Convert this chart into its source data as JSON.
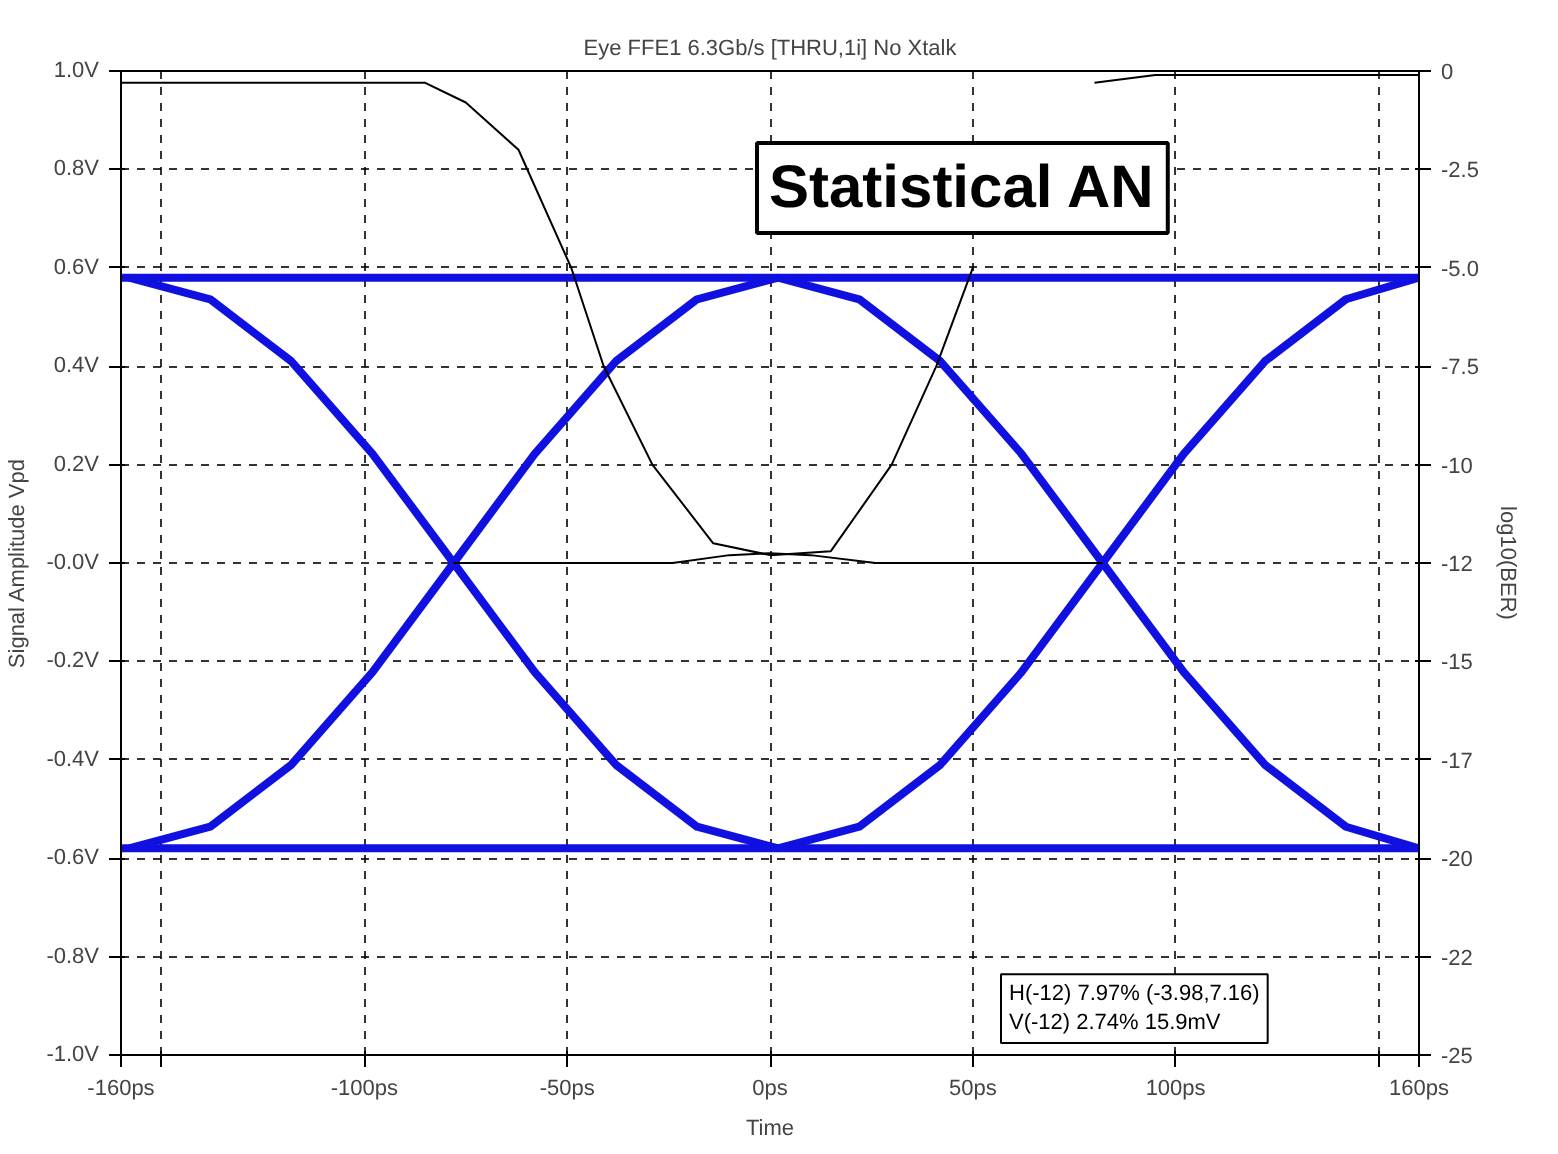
{
  "chart_data": {
    "type": "line",
    "title": "Eye FFE1 6.3Gb/s [THRU,1i] No Xtalk",
    "xlabel": "Time",
    "ylabel": "Signal Amplitude Vpd",
    "y2label": "log10(BER)",
    "xlim": [
      -160,
      160
    ],
    "ylim": [
      -1.0,
      1.0
    ],
    "y2lim": [
      -25,
      0
    ],
    "xticks": [
      {
        "value": -160,
        "label": "-160ps"
      },
      {
        "value": -150,
        "label": null
      },
      {
        "value": -100,
        "label": "-100ps"
      },
      {
        "value": -50,
        "label": "-50ps"
      },
      {
        "value": 0,
        "label": "0ps"
      },
      {
        "value": 50,
        "label": "50ps"
      },
      {
        "value": 100,
        "label": "100ps"
      },
      {
        "value": 150,
        "label": null
      },
      {
        "value": 160,
        "label": "160ps"
      }
    ],
    "yticks": [
      {
        "value": -1.0,
        "label": "-1.0V"
      },
      {
        "value": -0.8,
        "label": "-0.8V"
      },
      {
        "value": -0.6,
        "label": "-0.6V"
      },
      {
        "value": -0.4,
        "label": "-0.4V"
      },
      {
        "value": -0.2,
        "label": "-0.2V"
      },
      {
        "value": 0,
        "label": "-0.0V"
      },
      {
        "value": 0.2,
        "label": "0.2V"
      },
      {
        "value": 0.4,
        "label": "0.4V"
      },
      {
        "value": 0.6,
        "label": "0.6V"
      },
      {
        "value": 0.8,
        "label": "0.8V"
      },
      {
        "value": 1.0,
        "label": "1.0V"
      }
    ],
    "y2ticks": [
      0,
      {
        "value": -2.5,
        "label": "-2.5"
      },
      {
        "value": -5,
        "label": "-5.0"
      },
      {
        "value": -7.5,
        "label": "-7.5"
      },
      {
        "value": -10,
        "label": "-10"
      },
      {
        "value": -12.5,
        "label": "-12"
      },
      {
        "value": -15,
        "label": "-15"
      },
      {
        "value": -17.5,
        "label": "-17"
      },
      {
        "value": -20,
        "label": "-20"
      },
      {
        "value": -22.5,
        "label": "-22"
      },
      {
        "value": -25,
        "label": "-25"
      }
    ],
    "grid": true,
    "line_style": "solid",
    "series": [
      {
        "color": "#1010e0",
        "x": [
          -160,
          160
        ],
        "values": [
          0.58,
          0.58
        ]
      },
      {
        "color": "#1010e0",
        "x": [
          -160,
          160
        ],
        "values": [
          -0.58,
          -0.58
        ]
      },
      {
        "color": "#1010e0",
        "x": [
          -158,
          -138,
          -118,
          -98,
          -78,
          -58,
          -38,
          -18,
          2
        ],
        "values": [
          -0.58,
          -0.536,
          -0.41,
          -0.222,
          0,
          0.222,
          0.41,
          0.536,
          0.58
        ]
      },
      {
        "color": "#1010e0",
        "x": [
          -158,
          -138,
          -118,
          -98,
          -78,
          -58,
          -38,
          -18,
          2
        ],
        "values": [
          0.58,
          0.536,
          0.41,
          0.222,
          0,
          -0.222,
          -0.41,
          -0.536,
          -0.58
        ]
      },
      {
        "color": "#1010e0",
        "x": [
          2,
          22,
          42,
          62,
          82,
          102,
          122,
          142,
          160
        ],
        "values": [
          -0.58,
          -0.536,
          -0.41,
          -0.222,
          0,
          0.222,
          0.41,
          0.536,
          0.58
        ]
      },
      {
        "color": "#1010e0",
        "x": [
          2,
          22,
          42,
          62,
          82,
          102,
          122,
          142,
          160
        ],
        "values": [
          0.58,
          0.536,
          0.41,
          0.222,
          0,
          -0.222,
          -0.41,
          -0.536,
          -0.58
        ]
      },
      {
        "color": "#000000",
        "axis": "y2",
        "x": [
          -160,
          -85,
          -75,
          -62,
          -49,
          -41,
          -29,
          -14,
          0,
          15,
          30,
          41,
          50,
          57,
          70,
          80,
          95,
          160
        ],
        "values": [
          -0.3,
          -0.3,
          -0.8,
          -2,
          -5,
          -7.5,
          -10,
          -12,
          -12.3,
          -12.2,
          -10,
          -7.5,
          -5,
          null,
          null,
          -0.3,
          -0.1,
          -0.1
        ]
      },
      {
        "color": "#000000",
        "axis": "y2",
        "x": [
          -78,
          -24,
          -10,
          0,
          10,
          26,
          82
        ],
        "values": [
          -12.5,
          -12.5,
          -12.3,
          -12.25,
          -12.3,
          -12.5,
          -12.5
        ]
      }
    ],
    "annotations": [
      "Statistical AN",
      "H(-12) 7.97% (-3.98,7.16)\nV(-12) 2.74% 15.9mV"
    ]
  }
}
